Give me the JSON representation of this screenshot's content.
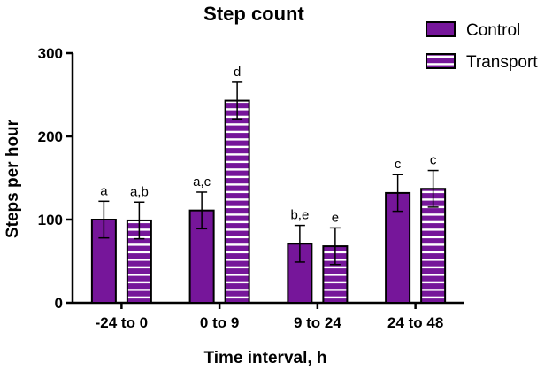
{
  "chart_data": {
    "type": "bar",
    "title": "Step count",
    "xlabel": "Time interval, h",
    "ylabel": "Steps per hour",
    "ylim": [
      0,
      300
    ],
    "yticks": [
      0,
      100,
      200,
      300
    ],
    "categories": [
      "-24 to 0",
      "0 to 9",
      "9 to 24",
      "24 to 48"
    ],
    "series": [
      {
        "name": "Control",
        "values": [
          100,
          111,
          71,
          132
        ],
        "errors": [
          22,
          22,
          22,
          22
        ],
        "labels": [
          "a",
          "a,c",
          "b,e",
          "c"
        ],
        "fill": "solid"
      },
      {
        "name": "Transport",
        "values": [
          99,
          243,
          68,
          137
        ],
        "errors": [
          22,
          22,
          22,
          22
        ],
        "labels": [
          "a,b",
          "d",
          "e",
          "c"
        ],
        "fill": "striped"
      }
    ],
    "legend_position": "top-right"
  },
  "colors": {
    "bar": "#76169a",
    "stripe": "#ffffff",
    "axis": "#000000"
  }
}
